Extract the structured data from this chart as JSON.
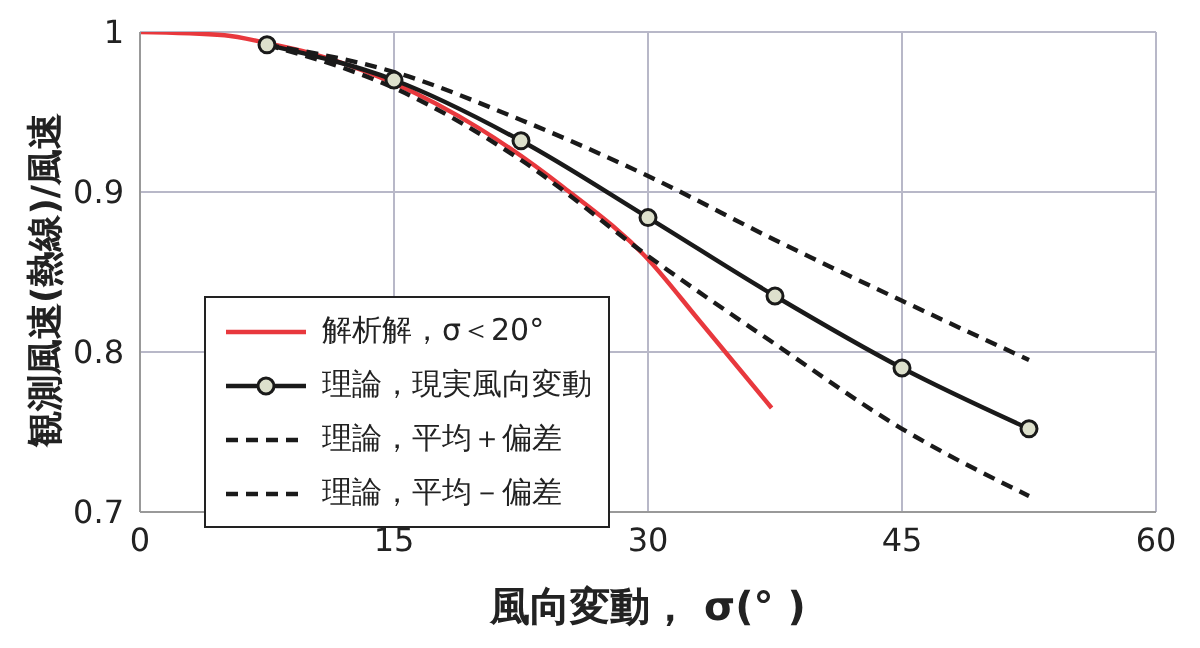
{
  "chart_data": {
    "type": "line",
    "xlabel": "風向変動，  σ(°  )",
    "ylabel": "観測風速(熱線)/風速",
    "xlim": [
      0,
      60
    ],
    "xticks": [
      0,
      15,
      30,
      45,
      60
    ],
    "ylim": [
      0.7,
      1
    ],
    "yticks": [
      0.7,
      0.8,
      0.9,
      1
    ],
    "grid": true,
    "legend": "bottom left",
    "series": [
      {
        "name": "解析解，σ＜20°",
        "color": "#e8383d",
        "marker": "none",
        "line_style": "solid",
        "x": [
          0,
          5,
          7.5,
          10,
          15,
          20,
          25,
          30,
          33,
          37.3
        ],
        "values": [
          1.0,
          0.998,
          0.993,
          0.987,
          0.968,
          0.94,
          0.903,
          0.858,
          0.82,
          0.765
        ]
      },
      {
        "name": "理論，現実風向変動",
        "color": "#1a1a1a",
        "marker": "circle",
        "line_style": "solid",
        "x": [
          7.5,
          15,
          22.5,
          30,
          37.5,
          45,
          52.5
        ],
        "values": [
          0.992,
          0.97,
          0.932,
          0.884,
          0.835,
          0.79,
          0.752
        ]
      },
      {
        "name": "理論，平均＋偏差",
        "color": "#1a1a1a",
        "marker": "none",
        "line_style": "dashed",
        "x": [
          7.5,
          15,
          22.5,
          30,
          37.5,
          45,
          52.5
        ],
        "values": [
          0.992,
          0.975,
          0.945,
          0.91,
          0.87,
          0.832,
          0.795
        ]
      },
      {
        "name": "理論，平均－偏差",
        "color": "#1a1a1a",
        "marker": "none",
        "line_style": "dashed",
        "x": [
          7.5,
          15,
          22.5,
          30,
          37.5,
          45,
          52.5
        ],
        "values": [
          0.992,
          0.965,
          0.92,
          0.86,
          0.805,
          0.752,
          0.71
        ]
      }
    ]
  }
}
